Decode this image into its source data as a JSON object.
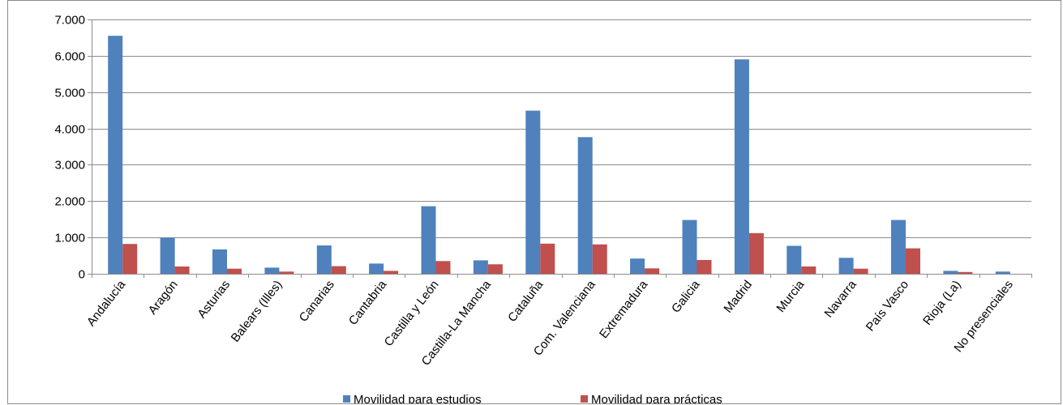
{
  "chart_data": {
    "type": "bar",
    "title": "",
    "xlabel": "",
    "ylabel": "",
    "ylim": [
      0,
      7000
    ],
    "yticks": [
      0,
      1000,
      2000,
      3000,
      4000,
      5000,
      6000,
      7000
    ],
    "ytick_labels": [
      "0",
      "1.000",
      "2.000",
      "3.000",
      "4.000",
      "5.000",
      "6.000",
      "7.000"
    ],
    "grid": true,
    "legend_position": "bottom",
    "categories": [
      "Andalucía",
      "Aragón",
      "Asturias",
      "Balears (Illes)",
      "Canarias",
      "Cantabria",
      "Castilla y León",
      "Castilla-La Mancha",
      "Cataluña",
      "Com. Valenciana",
      "Extremadura",
      "Galicia",
      "Madrid",
      "Murcia",
      "Navarra",
      "País Vasco",
      "Rioja (La)",
      "No presenciales"
    ],
    "series": [
      {
        "name": "Movilidad para estudios",
        "color": "#4f81bd",
        "values": [
          6550,
          990,
          670,
          170,
          780,
          280,
          1860,
          370,
          4490,
          3760,
          420,
          1480,
          5900,
          770,
          440,
          1480,
          80,
          60
        ]
      },
      {
        "name": "Movilidad para prácticas",
        "color": "#c0504d",
        "values": [
          820,
          200,
          140,
          60,
          210,
          80,
          350,
          260,
          830,
          810,
          150,
          380,
          1120,
          200,
          140,
          700,
          50,
          0
        ]
      }
    ]
  }
}
